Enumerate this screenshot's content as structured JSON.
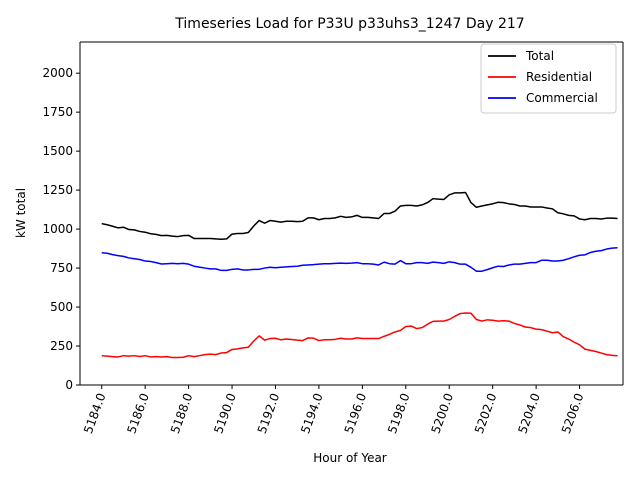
{
  "chart_data": {
    "type": "line",
    "title": "Timeseries Load for P33U p33uhs3_1247  Day 217",
    "xlabel": "Hour of Year",
    "ylabel": "kW total",
    "xlim": [
      5183.0,
      5208.0
    ],
    "ylim": [
      0,
      2200
    ],
    "xticks": [
      5184,
      5186,
      5188,
      5190,
      5192,
      5194,
      5196,
      5198,
      5200,
      5202,
      5204,
      5206
    ],
    "xtick_labels": [
      "5184.0",
      "5186.0",
      "5188.0",
      "5190.0",
      "5192.0",
      "5194.0",
      "5196.0",
      "5198.0",
      "5200.0",
      "5202.0",
      "5204.0",
      "5206.0"
    ],
    "yticks": [
      0,
      250,
      500,
      750,
      1000,
      1250,
      1500,
      1750,
      2000
    ],
    "ytick_labels": [
      "0",
      "250",
      "500",
      "750",
      "1000",
      "1250",
      "1500",
      "1750",
      "2000"
    ],
    "legend_position": "top-right",
    "x": [
      5184.0,
      5184.25,
      5184.5,
      5184.75,
      5185.0,
      5185.25,
      5185.5,
      5185.75,
      5186.0,
      5186.25,
      5186.5,
      5186.75,
      5187.0,
      5187.25,
      5187.5,
      5187.75,
      5188.0,
      5188.25,
      5188.5,
      5188.75,
      5189.0,
      5189.25,
      5189.5,
      5189.75,
      5190.0,
      5190.25,
      5190.5,
      5190.75,
      5191.0,
      5191.25,
      5191.5,
      5191.75,
      5192.0,
      5192.25,
      5192.5,
      5192.75,
      5193.0,
      5193.25,
      5193.5,
      5193.75,
      5194.0,
      5194.25,
      5194.5,
      5194.75,
      5195.0,
      5195.25,
      5195.5,
      5195.75,
      5196.0,
      5196.25,
      5196.5,
      5196.75,
      5197.0,
      5197.25,
      5197.5,
      5197.75,
      5198.0,
      5198.25,
      5198.5,
      5198.75,
      5199.0,
      5199.25,
      5199.5,
      5199.75,
      5200.0,
      5200.25,
      5200.5,
      5200.75,
      5201.0,
      5201.25,
      5201.5,
      5201.75,
      5202.0,
      5202.25,
      5202.5,
      5202.75,
      5203.0,
      5203.25,
      5203.5,
      5203.75,
      5204.0,
      5204.25,
      5204.5,
      5204.75,
      5205.0,
      5205.25,
      5205.5,
      5205.75,
      5206.0,
      5206.25,
      5206.5,
      5206.75,
      5207.0,
      5207.25,
      5207.5,
      5207.75
    ],
    "series": [
      {
        "name": "Total",
        "color": "#000000",
        "values": [
          1035,
          1028,
          1018,
          1008,
          1012,
          997,
          995,
          985,
          980,
          970,
          966,
          958,
          960,
          955,
          952,
          958,
          960,
          940,
          940,
          940,
          940,
          937,
          935,
          937,
          968,
          972,
          972,
          978,
          1020,
          1055,
          1038,
          1055,
          1050,
          1045,
          1050,
          1050,
          1048,
          1050,
          1072,
          1072,
          1060,
          1068,
          1068,
          1072,
          1082,
          1075,
          1078,
          1088,
          1075,
          1075,
          1072,
          1068,
          1100,
          1100,
          1115,
          1148,
          1152,
          1152,
          1148,
          1155,
          1170,
          1195,
          1192,
          1190,
          1220,
          1232,
          1232,
          1235,
          1170,
          1140,
          1148,
          1155,
          1162,
          1172,
          1170,
          1162,
          1158,
          1148,
          1148,
          1142,
          1142,
          1142,
          1135,
          1130,
          1105,
          1098,
          1088,
          1085,
          1065,
          1060,
          1068,
          1068,
          1065,
          1070,
          1070,
          1068
        ]
      },
      {
        "name": "Residential",
        "color": "#ff0000",
        "values": [
          188,
          185,
          182,
          180,
          188,
          185,
          188,
          183,
          188,
          180,
          182,
          180,
          182,
          176,
          176,
          178,
          188,
          182,
          188,
          195,
          198,
          195,
          205,
          208,
          228,
          232,
          238,
          242,
          282,
          315,
          288,
          298,
          300,
          290,
          295,
          292,
          288,
          285,
          302,
          300,
          285,
          290,
          290,
          293,
          300,
          295,
          295,
          302,
          298,
          298,
          298,
          298,
          312,
          325,
          340,
          350,
          375,
          378,
          362,
          368,
          390,
          408,
          410,
          410,
          420,
          440,
          458,
          462,
          460,
          420,
          410,
          418,
          415,
          410,
          412,
          410,
          395,
          385,
          372,
          368,
          358,
          355,
          345,
          335,
          340,
          310,
          295,
          275,
          258,
          230,
          222,
          215,
          205,
          195,
          190,
          188
        ]
      },
      {
        "name": "Commercial",
        "color": "#0000ff",
        "values": [
          848,
          845,
          836,
          830,
          825,
          815,
          810,
          805,
          795,
          792,
          785,
          776,
          778,
          780,
          778,
          780,
          775,
          762,
          756,
          750,
          745,
          745,
          735,
          735,
          742,
          745,
          738,
          738,
          742,
          742,
          750,
          755,
          752,
          755,
          758,
          760,
          762,
          768,
          770,
          772,
          775,
          778,
          778,
          780,
          782,
          780,
          782,
          785,
          778,
          778,
          775,
          770,
          788,
          778,
          775,
          798,
          778,
          778,
          785,
          785,
          780,
          788,
          785,
          780,
          790,
          785,
          775,
          775,
          755,
          730,
          730,
          740,
          752,
          762,
          760,
          770,
          775,
          775,
          780,
          785,
          785,
          800,
          800,
          795,
          795,
          800,
          810,
          822,
          832,
          835,
          850,
          858,
          862,
          872,
          878,
          880
        ]
      }
    ]
  }
}
